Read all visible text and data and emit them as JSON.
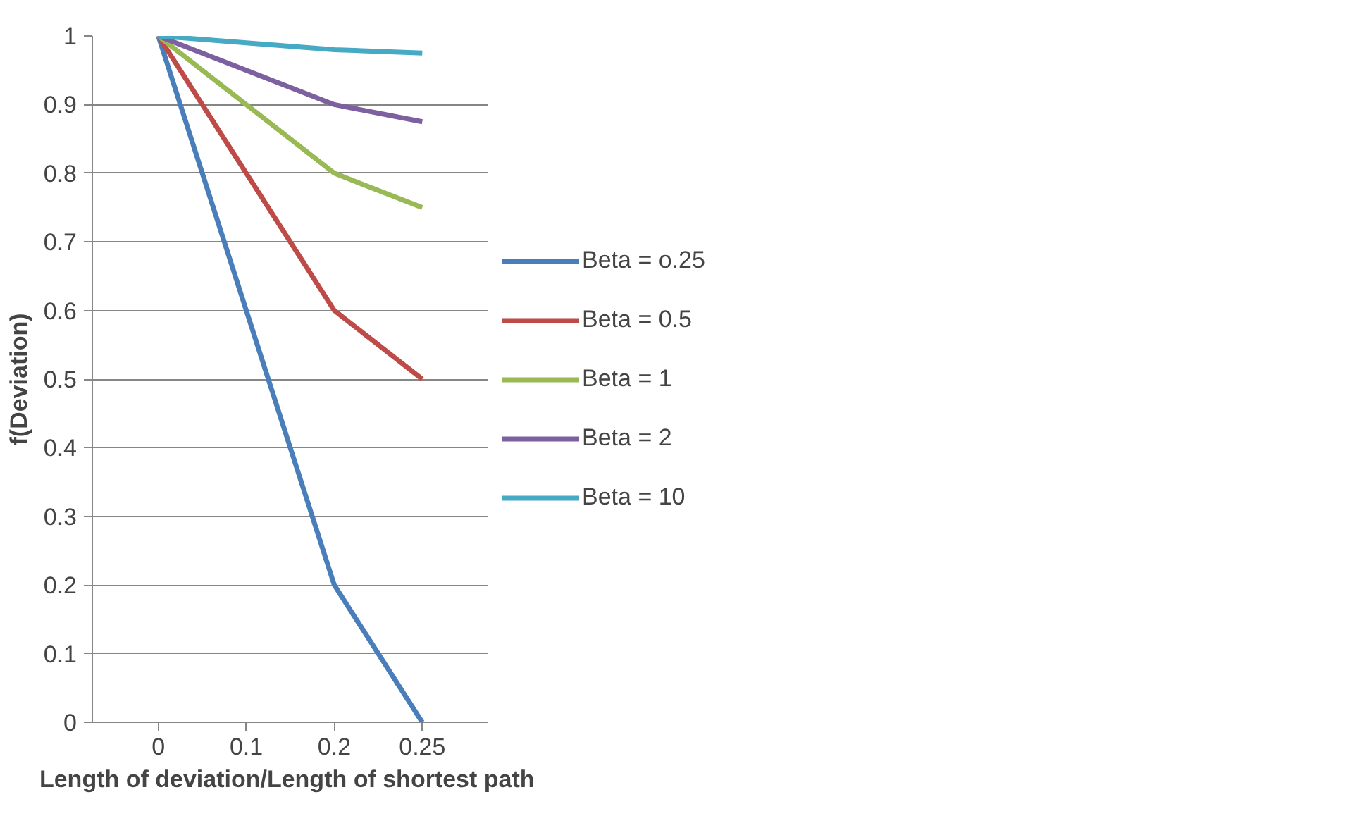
{
  "chart_data": {
    "type": "line",
    "xlabel": "Length of deviation/Length of shortest  path",
    "ylabel": "f(Deviation)",
    "categories": [
      "0",
      "0.1",
      "0.2",
      "0.25"
    ],
    "series": [
      {
        "name": "Beta = o.25",
        "color": "#4a7ebb",
        "values": [
          1,
          0.6,
          0.2,
          0
        ]
      },
      {
        "name": "Beta = 0.5",
        "color": "#be4b48",
        "values": [
          1,
          0.8,
          0.6,
          0.5
        ]
      },
      {
        "name": "Beta = 1",
        "color": "#98b954",
        "values": [
          1,
          0.9,
          0.8,
          0.75
        ]
      },
      {
        "name": "Beta = 2",
        "color": "#7d60a0",
        "values": [
          1,
          0.95,
          0.9,
          0.875
        ]
      },
      {
        "name": "Beta = 10",
        "color": "#46aac5",
        "values": [
          1,
          0.99,
          0.98,
          0.975
        ]
      }
    ],
    "ylim": [
      0,
      1
    ],
    "yticks": [
      0,
      0.1,
      0.2,
      0.3,
      0.4,
      0.5,
      0.6,
      0.7,
      0.8,
      0.9,
      1
    ],
    "grid": "y",
    "legend": "right",
    "marker": "none",
    "line_style": "solid"
  }
}
